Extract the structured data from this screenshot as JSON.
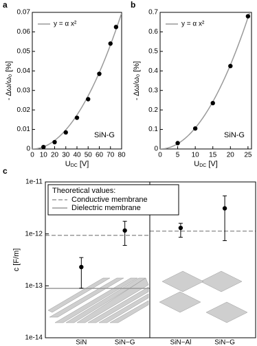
{
  "chart_data": [
    {
      "type": "scatter",
      "label": "a",
      "annotation": "SiN-G",
      "legend": "y = α x²",
      "fit_color": "#999999",
      "color": "#000000",
      "ylabel": "- Δω/ω₀ [%]",
      "xlabel": {
        "main": "U",
        "sub": "DC",
        "unit": "[V]"
      },
      "x": [
        10,
        20,
        30,
        40,
        50,
        60,
        70,
        75
      ],
      "values": [
        0.001,
        0.0035,
        0.0085,
        0.016,
        0.0255,
        0.0385,
        0.054,
        0.0625
      ],
      "xlim": [
        0,
        80
      ],
      "xticks": [
        0,
        10,
        20,
        30,
        40,
        50,
        60,
        70,
        80
      ],
      "ylim": [
        0,
        0.07
      ],
      "yticks": [
        0,
        0.01,
        0.02,
        0.03,
        0.04,
        0.05,
        0.06,
        0.07
      ]
    },
    {
      "type": "scatter",
      "label": "b",
      "annotation": "SiN-G",
      "legend": "y = α x²",
      "fit_color": "#999999",
      "color": "#000000",
      "ylabel": "- Δω/ω₀ [%]",
      "xlabel": {
        "main": "U",
        "sub": "DC",
        "unit": "[V]"
      },
      "x": [
        5,
        10,
        15,
        20,
        25
      ],
      "values": [
        0.03,
        0.105,
        0.235,
        0.425,
        0.68
      ],
      "xlim": [
        0,
        26
      ],
      "xticks": [
        0,
        5,
        10,
        15,
        20,
        25
      ],
      "ylim": [
        0,
        0.7
      ],
      "yticks": [
        0,
        0.1,
        0.2,
        0.3,
        0.4,
        0.5,
        0.6,
        0.7
      ]
    },
    {
      "type": "errorbar",
      "label": "c",
      "ylabel": "c [F/m]",
      "log_y": true,
      "color": "#000000",
      "ylim": [
        1e-14,
        1e-11
      ],
      "yticks": [
        {
          "value": 1e-14,
          "label": "1e-14"
        },
        {
          "value": 1e-13,
          "label": "1e-13"
        },
        {
          "value": 1e-12,
          "label": "1e-12"
        },
        {
          "value": 1e-11,
          "label": "1e-11"
        }
      ],
      "legend_title": "Theoretical values:",
      "theory": [
        {
          "name": "Conductive membrane",
          "color": "#999999",
          "style": "dashed"
        },
        {
          "name": "Dielectric membrane",
          "color": "#999999",
          "style": "solid"
        }
      ],
      "panels": [
        {
          "categories": [
            "SiN",
            "SiN−G"
          ],
          "values": [
            2.3e-13,
            1.16e-12
          ],
          "lower": [
            9e-14,
            6e-13
          ],
          "upper": [
            3.5e-13,
            1.75e-12
          ],
          "theory": [
            9.4e-13,
            8.9e-14
          ]
        },
        {
          "categories": [
            "SiN−Al",
            "SiN−G"
          ],
          "values": [
            1.3e-12,
            3.1e-12
          ],
          "lower": [
            8.6e-13,
            7.4e-13
          ],
          "upper": [
            1.6e-12,
            5.4e-12
          ],
          "theory": [
            1.13e-12,
            null
          ]
        }
      ]
    }
  ]
}
